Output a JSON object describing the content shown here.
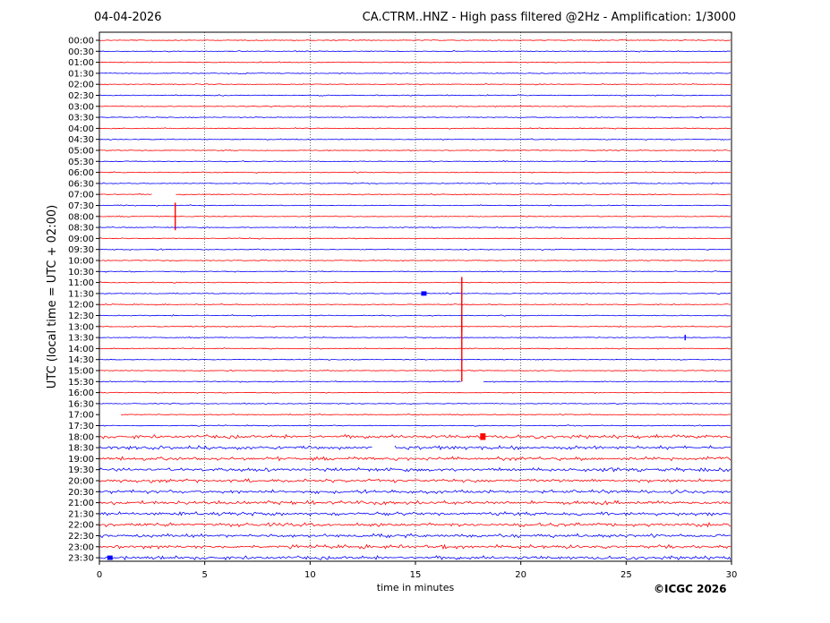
{
  "header": {
    "date": "04-04-2026",
    "title": "CA.CTRM..HNZ - High pass filtered @2Hz - Amplification: 1/3000"
  },
  "footer": {
    "copyright": "©ICGC 2026"
  },
  "chart_data": {
    "type": "line",
    "title": "CA.CTRM..HNZ - High pass filtered @2Hz - Amplification: 1/3000",
    "xlabel": "time in minutes",
    "ylabel": "UTC (local time = UTC + 02:00)",
    "xlim": [
      0,
      30
    ],
    "xticks": [
      0,
      5,
      10,
      15,
      20,
      25,
      30
    ],
    "grid": "vertical dotted at x = 5, 10, 15, 20, 25",
    "colors": {
      "red_trace": "#ff0000",
      "blue_trace": "#0000ff"
    },
    "trace_colors_alternate": [
      "red",
      "blue"
    ],
    "rows": [
      "00:00",
      "00:30",
      "01:00",
      "01:30",
      "02:00",
      "02:30",
      "03:00",
      "03:30",
      "04:00",
      "04:30",
      "05:00",
      "05:30",
      "06:00",
      "06:30",
      "07:00",
      "07:30",
      "08:00",
      "08:30",
      "09:00",
      "09:30",
      "10:00",
      "10:30",
      "11:00",
      "11:30",
      "12:00",
      "12:30",
      "13:00",
      "13:30",
      "14:00",
      "14:30",
      "15:00",
      "15:30",
      "16:00",
      "16:30",
      "17:00",
      "17:30",
      "18:00",
      "18:30",
      "19:00",
      "19:30",
      "20:00",
      "20:30",
      "21:00",
      "21:30",
      "22:00",
      "22:30",
      "23:00",
      "23:30"
    ],
    "events": [
      {
        "row": "07:00",
        "minute": 3.6,
        "amplitude": 3,
        "type": "gap",
        "gap_start": 2.5,
        "gap_end": 3.6
      },
      {
        "row": "08:00",
        "minute": 3.6,
        "amplitude": 2.5,
        "type": "spike"
      },
      {
        "row": "11:30",
        "minute": 15.4,
        "amplitude": 0.4,
        "type": "burst"
      },
      {
        "row": "12:00",
        "minute": 17.2,
        "amplitude": 5,
        "type": "spike"
      },
      {
        "row": "13:30",
        "minute": 27.8,
        "amplitude": 0.5,
        "type": "spike"
      },
      {
        "row": "14:00",
        "minute": 17.2,
        "amplitude": 6,
        "type": "spike"
      },
      {
        "row": "15:30",
        "minute": 0,
        "type": "gap",
        "gap_start": 17.2,
        "gap_end": 18.2
      },
      {
        "row": "17:00",
        "minute": 0,
        "type": "gap",
        "gap_start": 0,
        "gap_end": 1.0
      },
      {
        "row": "18:00",
        "minute": 18.2,
        "amplitude": 0.6,
        "type": "burst"
      },
      {
        "row": "18:30",
        "minute": 13.5,
        "type": "gap",
        "gap_start": 13.0,
        "gap_end": 14.0
      },
      {
        "row": "23:30",
        "minute": 0.5,
        "amplitude": 0.4,
        "type": "burst"
      }
    ],
    "noisy_rows": [
      "18:00",
      "18:30",
      "19:00",
      "19:30",
      "20:00",
      "20:30",
      "21:00",
      "21:30",
      "22:00",
      "22:30",
      "23:00",
      "23:30"
    ]
  }
}
